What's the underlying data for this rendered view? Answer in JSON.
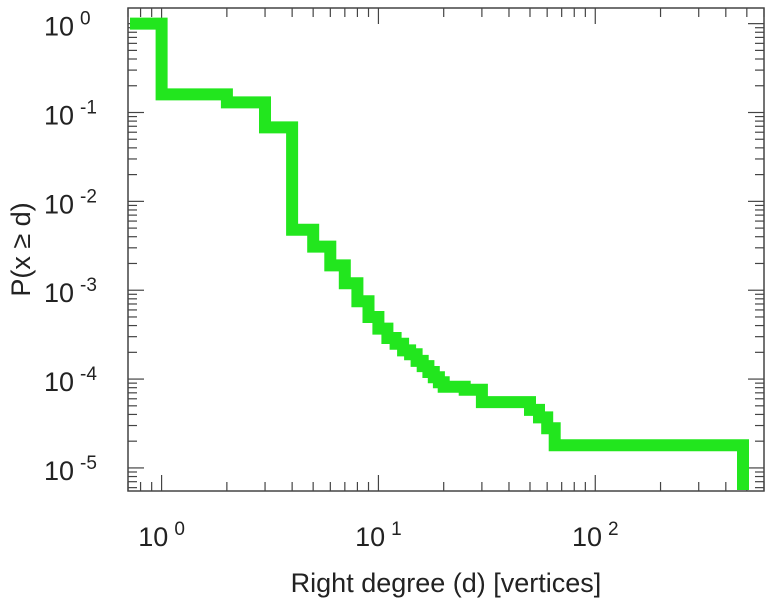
{
  "chart_data": {
    "type": "line",
    "step": true,
    "xscale": "log",
    "yscale": "log",
    "xlim": [
      0.7,
      600
    ],
    "ylim": [
      5.5e-06,
      1.5
    ],
    "xlabel": "Right degree (d) [vertices]",
    "ylabel": "P(x ≥ d)",
    "grid": false,
    "legend": "none",
    "x_ticks": [
      {
        "base": "10",
        "exp": "0"
      },
      {
        "base": "10",
        "exp": "1"
      },
      {
        "base": "10",
        "exp": "2"
      }
    ],
    "y_ticks": [
      {
        "base": "10",
        "exp": "0"
      },
      {
        "base": "10",
        "exp": "-1"
      },
      {
        "base": "10",
        "exp": "-2"
      },
      {
        "base": "10",
        "exp": "-3"
      },
      {
        "base": "10",
        "exp": "-4"
      },
      {
        "base": "10",
        "exp": "-5"
      }
    ],
    "series": [
      {
        "color": "#22e61e",
        "x": [
          1,
          2,
          3,
          4,
          5,
          6,
          7,
          8,
          9,
          10,
          11,
          12,
          13,
          14,
          15,
          16,
          17,
          18,
          19,
          20,
          25,
          30,
          50,
          55,
          60,
          65,
          75,
          480
        ],
        "y": [
          1.0,
          0.16,
          0.13,
          0.068,
          0.0048,
          0.0031,
          0.0019,
          0.0012,
          0.00075,
          0.0005,
          0.00037,
          0.00029,
          0.00025,
          0.00021,
          0.00019,
          0.00016,
          0.00014,
          0.00012,
          0.000105,
          9.2e-05,
          8.2e-05,
          7.6e-05,
          5.5e-05,
          4.5e-05,
          3.7e-05,
          2.8e-05,
          1.8e-05,
          1.8e-05
        ]
      }
    ]
  }
}
